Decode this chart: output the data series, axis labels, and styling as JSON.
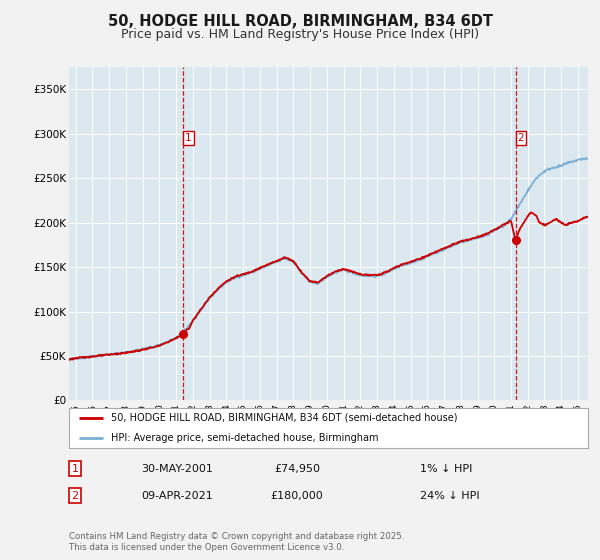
{
  "title": "50, HODGE HILL ROAD, BIRMINGHAM, B34 6DT",
  "subtitle": "Price paid vs. HM Land Registry's House Price Index (HPI)",
  "title_fontsize": 10.5,
  "subtitle_fontsize": 9,
  "background_color": "#f2f2f2",
  "plot_bg_color": "#dce8f0",
  "grid_color": "#ffffff",
  "ylim": [
    0,
    375000
  ],
  "xlim_start": 1994.6,
  "xlim_end": 2025.6,
  "yticks": [
    0,
    50000,
    100000,
    150000,
    200000,
    250000,
    300000,
    350000
  ],
  "ytick_labels": [
    "£0",
    "£50K",
    "£100K",
    "£150K",
    "£200K",
    "£250K",
    "£300K",
    "£350K"
  ],
  "xticks": [
    1995,
    1996,
    1997,
    1998,
    1999,
    2000,
    2001,
    2002,
    2003,
    2004,
    2005,
    2006,
    2007,
    2008,
    2009,
    2010,
    2011,
    2012,
    2013,
    2014,
    2015,
    2016,
    2017,
    2018,
    2019,
    2020,
    2021,
    2022,
    2023,
    2024,
    2025
  ],
  "red_line_color": "#cc0000",
  "blue_line_color": "#7bafd4",
  "marker_color": "#cc0000",
  "vline_color": "#cc0000",
  "sale1_x": 2001.41,
  "sale1_y": 74950,
  "sale2_x": 2021.27,
  "sale2_y": 180000,
  "legend_label_red": "50, HODGE HILL ROAD, BIRMINGHAM, B34 6DT (semi-detached house)",
  "legend_label_blue": "HPI: Average price, semi-detached house, Birmingham",
  "note1_label": "1",
  "note1_date": "30-MAY-2001",
  "note1_price": "£74,950",
  "note1_hpi": "1% ↓ HPI",
  "note2_label": "2",
  "note2_date": "09-APR-2021",
  "note2_price": "£180,000",
  "note2_hpi": "24% ↓ HPI",
  "footer": "Contains HM Land Registry data © Crown copyright and database right 2025.\nThis data is licensed under the Open Government Licence v3.0."
}
